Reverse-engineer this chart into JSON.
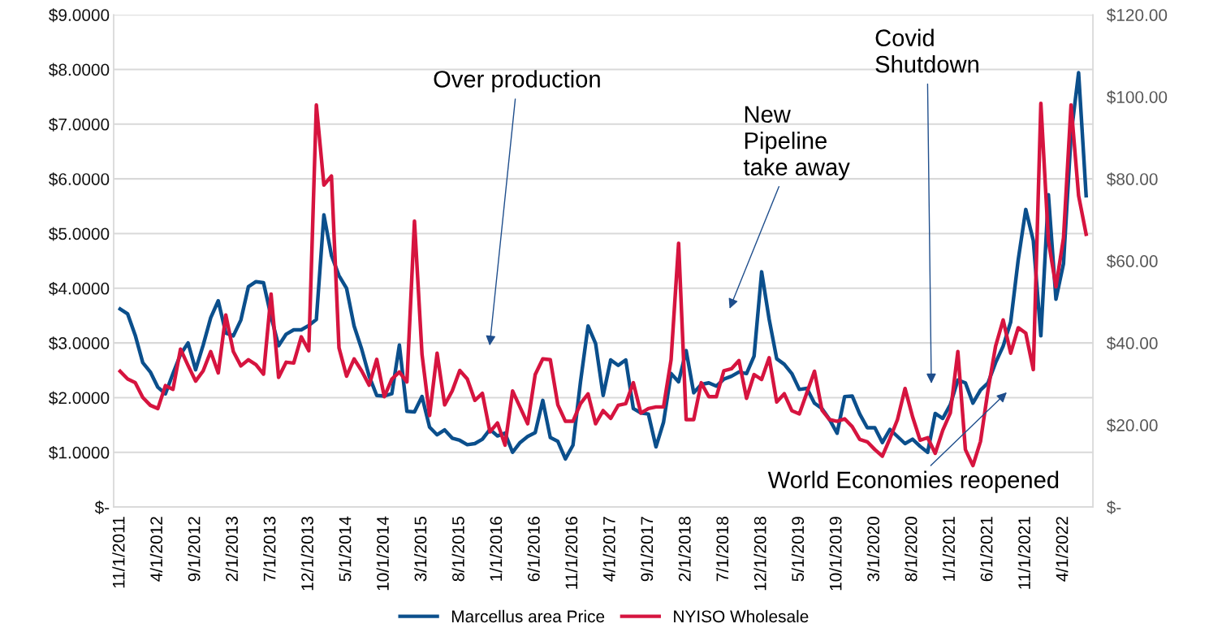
{
  "chart_data": {
    "type": "line",
    "categories": [
      "11/1/2011",
      null,
      null,
      null,
      null,
      "4/1/2012",
      null,
      null,
      null,
      null,
      "9/1/2012",
      null,
      null,
      null,
      null,
      "2/1/2013",
      null,
      null,
      null,
      null,
      "7/1/2013",
      null,
      null,
      null,
      null,
      "12/1/2013",
      null,
      null,
      null,
      null,
      "5/1/2014",
      null,
      null,
      null,
      null,
      "10/1/2014",
      null,
      null,
      null,
      null,
      "3/1/2015",
      null,
      null,
      null,
      null,
      "8/1/2015",
      null,
      null,
      null,
      null,
      "1/1/2016",
      null,
      null,
      null,
      null,
      "6/1/2016",
      null,
      null,
      null,
      null,
      "11/1/2016",
      null,
      null,
      null,
      null,
      "4/1/2017",
      null,
      null,
      null,
      null,
      "9/1/2017",
      null,
      null,
      null,
      null,
      "2/1/2018",
      null,
      null,
      null,
      null,
      "7/1/2018",
      null,
      null,
      null,
      null,
      "12/1/2018",
      null,
      null,
      null,
      null,
      "5/1/2019",
      null,
      null,
      null,
      null,
      "10/1/2019",
      null,
      null,
      null,
      null,
      "3/1/2020",
      null,
      null,
      null,
      null,
      "8/1/2020",
      null,
      null,
      null,
      null,
      "1/1/2021",
      null,
      null,
      null,
      null,
      "6/1/2021",
      null,
      null,
      null,
      null,
      "11/1/2021",
      null,
      null,
      null,
      null,
      "4/1/2022",
      null,
      null,
      null
    ],
    "series": [
      {
        "name": "Marcellus area Price",
        "color": "#0b4f8c",
        "values": [
          3.62,
          3.53,
          3.14,
          2.64,
          2.47,
          2.19,
          2.07,
          2.44,
          2.79,
          3.0,
          2.51,
          2.96,
          3.46,
          3.77,
          3.18,
          3.13,
          3.42,
          4.03,
          4.12,
          4.1,
          3.48,
          2.95,
          3.16,
          3.24,
          3.24,
          3.32,
          3.43,
          5.34,
          4.6,
          4.23,
          4.0,
          3.31,
          2.89,
          2.39,
          2.04,
          2.03,
          2.07,
          2.96,
          1.75,
          1.74,
          2.02,
          1.46,
          1.32,
          1.41,
          1.26,
          1.22,
          1.14,
          1.16,
          1.24,
          1.42,
          1.3,
          1.35,
          1.0,
          1.18,
          1.29,
          1.36,
          1.95,
          1.27,
          1.2,
          0.88,
          1.13,
          2.29,
          3.31,
          2.99,
          2.04,
          2.69,
          2.59,
          2.69,
          1.8,
          1.72,
          1.7,
          1.1,
          1.55,
          2.44,
          2.29,
          2.86,
          2.09,
          2.24,
          2.27,
          2.21,
          2.34,
          2.39,
          2.47,
          2.44,
          2.76,
          4.3,
          3.43,
          2.71,
          2.61,
          2.44,
          2.15,
          2.17,
          1.9,
          1.8,
          1.6,
          1.35,
          2.02,
          2.03,
          1.7,
          1.45,
          1.45,
          1.18,
          1.42,
          1.29,
          1.16,
          1.24,
          1.11,
          1.0,
          1.71,
          1.62,
          1.87,
          2.32,
          2.27,
          1.9,
          2.14,
          2.27,
          2.64,
          2.94,
          3.38,
          4.52,
          5.44,
          4.87,
          3.13,
          5.71,
          3.8,
          4.45,
          6.8,
          7.94,
          5.69
        ]
      },
      {
        "name": "NYISO Wholesale",
        "color": "#d6143f",
        "axis": "y2",
        "values": [
          33.1,
          31.2,
          30.3,
          26.7,
          24.8,
          24.0,
          29.6,
          28.7,
          38.5,
          34.5,
          30.7,
          33.2,
          37.9,
          32.7,
          46.8,
          37.9,
          34.4,
          35.9,
          34.7,
          32.4,
          51.9,
          31.6,
          35.3,
          35.1,
          41.5,
          38.1,
          98.0,
          78.5,
          80.7,
          38.8,
          31.9,
          36.1,
          33.2,
          29.7,
          36.0,
          26.9,
          31.2,
          32.9,
          30.5,
          69.7,
          37.2,
          22.3,
          37.5,
          24.9,
          28.3,
          33.3,
          31.2,
          26.0,
          27.7,
          18.3,
          20.5,
          15.1,
          28.3,
          24.3,
          20.3,
          32.3,
          36.1,
          35.9,
          24.9,
          20.9,
          20.9,
          25.2,
          27.6,
          20.3,
          23.5,
          21.6,
          24.8,
          25.2,
          30.3,
          22.9,
          24.0,
          24.4,
          24.4,
          35.9,
          64.3,
          21.3,
          21.3,
          30.3,
          26.9,
          26.9,
          33.2,
          33.7,
          35.7,
          26.5,
          32.3,
          31.1,
          36.4,
          25.6,
          27.6,
          23.5,
          22.7,
          27.9,
          33.1,
          23.6,
          21.3,
          20.9,
          21.5,
          19.6,
          16.5,
          15.9,
          14.0,
          12.4,
          16.7,
          21.3,
          28.9,
          22.0,
          16.3,
          16.9,
          13.1,
          18.7,
          22.9,
          37.9,
          14.0,
          10.1,
          16.0,
          28.5,
          39.2,
          45.6,
          37.5,
          43.7,
          42.4,
          33.5,
          98.4,
          64.9,
          53.7,
          65.6,
          98.0,
          75.9,
          66.5
        ]
      }
    ],
    "ylim": [
      0,
      9
    ],
    "yticks": [
      {
        "value": 0,
        "label": "$-"
      },
      {
        "value": 1,
        "label": "$1.0000"
      },
      {
        "value": 2,
        "label": "$2.0000"
      },
      {
        "value": 3,
        "label": "$3.0000"
      },
      {
        "value": 4,
        "label": "$4.0000"
      },
      {
        "value": 5,
        "label": "$5.0000"
      },
      {
        "value": 6,
        "label": "$6.0000"
      },
      {
        "value": 7,
        "label": "$7.0000"
      },
      {
        "value": 8,
        "label": "$8.0000"
      },
      {
        "value": 9,
        "label": "$9.0000"
      }
    ],
    "y2lim": [
      0,
      120
    ],
    "y2ticks": [
      {
        "value": 0,
        "label": "$-"
      },
      {
        "value": 20,
        "label": "$20.00"
      },
      {
        "value": 40,
        "label": "$40.00"
      },
      {
        "value": 60,
        "label": "$60.00"
      },
      {
        "value": 80,
        "label": "$80.00"
      },
      {
        "value": 100,
        "label": "$100.00"
      },
      {
        "value": 120,
        "label": "$120.00"
      }
    ],
    "grid": "y",
    "legend": "bottom",
    "marker": "none",
    "line_style": "solid",
    "annotations": [
      "Over production",
      "New\nPipeline\ntake away",
      "Covid\nShutdown",
      "World Economies reopened"
    ]
  }
}
